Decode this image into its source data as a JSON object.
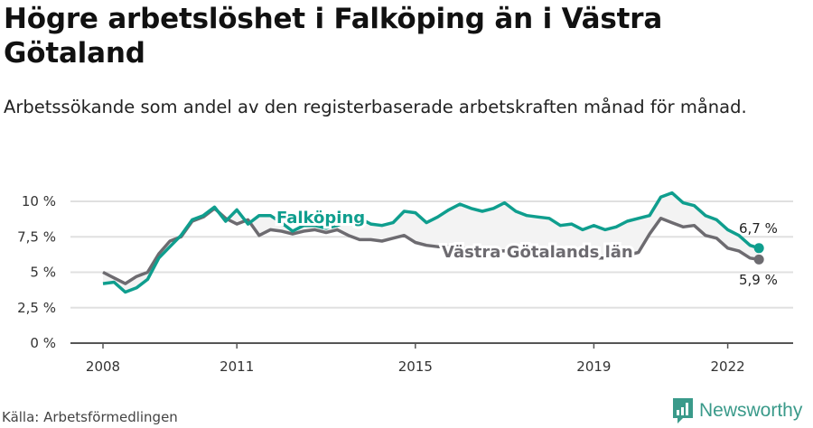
{
  "header": {
    "title": "Högre arbetslöshet i Falköping än i Västra Götaland",
    "subtitle": "Arbetssökande som andel av den registerbaserade arbetskraften månad för månad."
  },
  "footer": {
    "source": "Källa: Arbetsförmedlingen",
    "brand": "Newsworthy",
    "brand_icon": "bar-chart-speech-bubble-icon"
  },
  "colors": {
    "falkoping": "#0f9e8e",
    "vastra_gotaland": "#6d6b70",
    "gridline": "#e0e0e0",
    "axis": "#555555",
    "area_fill": "#f3f3f3",
    "brand": "#3a9a8a"
  },
  "chart_data": {
    "type": "line",
    "title": "Högre arbetslöshet i Falköping än i Västra Götaland",
    "subtitle": "Arbetssökande som andel av den registerbaserade arbetskraften månad för månad.",
    "xlabel": "",
    "ylabel": "",
    "ylim": [
      0,
      10
    ],
    "yticks": [
      0,
      2.5,
      5,
      7.5,
      10
    ],
    "ytick_labels": [
      "0 %",
      "2,5 %",
      "5 %",
      "7,5 %",
      "10 %"
    ],
    "xticks": [
      2008,
      2011,
      2015,
      2019,
      2022
    ],
    "xtick_labels": [
      "2008",
      "2011",
      "2015",
      "2019",
      "2022"
    ],
    "grid": true,
    "legend": "inline labels",
    "x": [
      2008.0,
      2008.25,
      2008.5,
      2008.75,
      2009.0,
      2009.25,
      2009.5,
      2009.75,
      2010.0,
      2010.25,
      2010.5,
      2010.75,
      2011.0,
      2011.25,
      2011.5,
      2011.75,
      2012.0,
      2012.25,
      2012.5,
      2012.75,
      2013.0,
      2013.25,
      2013.5,
      2013.75,
      2014.0,
      2014.25,
      2014.5,
      2014.75,
      2015.0,
      2015.25,
      2015.5,
      2015.75,
      2016.0,
      2016.25,
      2016.5,
      2016.75,
      2017.0,
      2017.25,
      2017.5,
      2017.75,
      2018.0,
      2018.25,
      2018.5,
      2018.75,
      2019.0,
      2019.25,
      2019.5,
      2019.75,
      2020.0,
      2020.25,
      2020.5,
      2020.75,
      2021.0,
      2021.25,
      2021.5,
      2021.75,
      2022.0,
      2022.25,
      2022.5,
      2022.7
    ],
    "series": [
      {
        "name": "Falköping",
        "values": [
          4.2,
          4.3,
          3.6,
          3.9,
          4.5,
          6.0,
          6.8,
          7.6,
          8.7,
          9.0,
          9.6,
          8.6,
          9.4,
          8.4,
          9.0,
          9.0,
          8.5,
          7.9,
          8.3,
          8.3,
          8.1,
          8.3,
          8.6,
          8.8,
          8.4,
          8.3,
          8.5,
          9.3,
          9.2,
          8.5,
          8.9,
          9.4,
          9.8,
          9.5,
          9.3,
          9.5,
          9.9,
          9.3,
          9.0,
          8.9,
          8.8,
          8.3,
          8.4,
          8.0,
          8.3,
          8.0,
          8.2,
          8.6,
          8.8,
          9.0,
          10.3,
          10.6,
          9.9,
          9.7,
          9.0,
          8.7,
          8.0,
          7.6,
          6.9,
          6.7
        ]
      },
      {
        "name": "Västra Götalands län",
        "values": [
          5.0,
          4.6,
          4.2,
          4.7,
          5.0,
          6.3,
          7.2,
          7.5,
          8.6,
          8.9,
          9.5,
          8.8,
          8.4,
          8.7,
          7.6,
          8.0,
          7.9,
          7.7,
          7.9,
          8.0,
          7.8,
          8.0,
          7.6,
          7.3,
          7.3,
          7.2,
          7.4,
          7.6,
          7.1,
          6.9,
          6.8,
          6.8,
          6.7,
          6.7,
          6.6,
          6.5,
          6.5,
          6.4,
          6.3,
          6.3,
          6.2,
          6.2,
          6.1,
          6.1,
          6.0,
          6.0,
          6.1,
          6.2,
          6.4,
          7.7,
          8.8,
          8.5,
          8.2,
          8.3,
          7.6,
          7.4,
          6.7,
          6.5,
          6.0,
          5.9
        ]
      }
    ],
    "annotations": [
      {
        "text": "Falköping",
        "series": "Falköping"
      },
      {
        "text": "Västra Götalands län",
        "series": "Västra Götalands län"
      },
      {
        "text": "6,7 %",
        "series": "Falköping",
        "position": "end"
      },
      {
        "text": "5,9 %",
        "series": "Västra Götalands län",
        "position": "end"
      }
    ]
  },
  "labels": {
    "falkoping": "Falköping",
    "vastra": "Västra Götalands län",
    "end_falkoping": "6,7 %",
    "end_vastra": "5,9 %"
  }
}
